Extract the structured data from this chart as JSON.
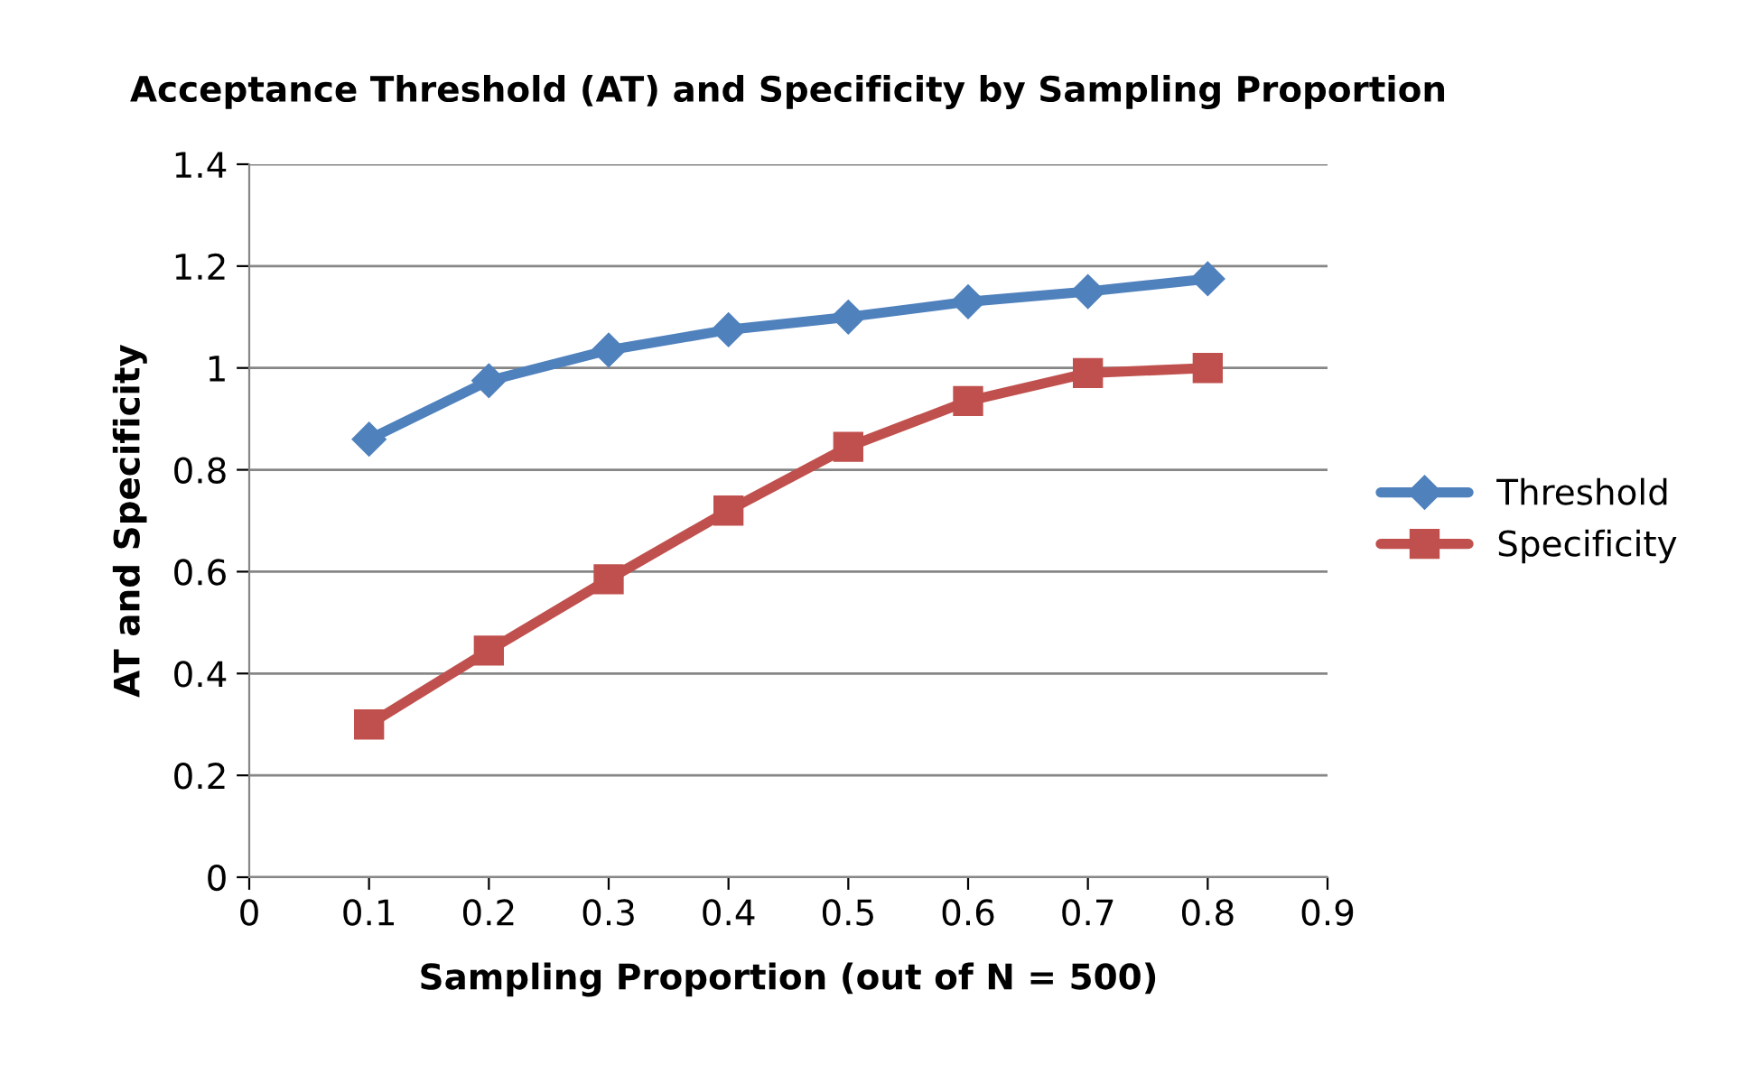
{
  "chart_data": {
    "type": "line",
    "title": "Acceptance Threshold (AT) and Specificity by Sampling Proportion",
    "xlabel": "Sampling Proportion (out of N = 500)",
    "ylabel": "AT and Specificity",
    "x": [
      0.1,
      0.2,
      0.3,
      0.4,
      0.5,
      0.6,
      0.7,
      0.8
    ],
    "series": [
      {
        "name": "Threshold",
        "color": "#4f81bd",
        "marker": "diamond",
        "values": [
          0.86,
          0.975,
          1.035,
          1.075,
          1.1,
          1.13,
          1.15,
          1.175
        ]
      },
      {
        "name": "Specificity",
        "color": "#c0504d",
        "marker": "square",
        "values": [
          0.3,
          0.445,
          0.585,
          0.72,
          0.845,
          0.935,
          0.99,
          1.0
        ]
      }
    ],
    "xlim": [
      0,
      0.9
    ],
    "xticks": [
      0,
      0.1,
      0.2,
      0.3,
      0.4,
      0.5,
      0.6,
      0.7,
      0.8,
      0.9
    ],
    "ylim": [
      0,
      1.4
    ],
    "yticks": [
      0,
      0.2,
      0.4,
      0.6,
      0.8,
      1,
      1.2,
      1.4
    ],
    "grid": "y",
    "legend": "right",
    "line_style": "solid"
  }
}
